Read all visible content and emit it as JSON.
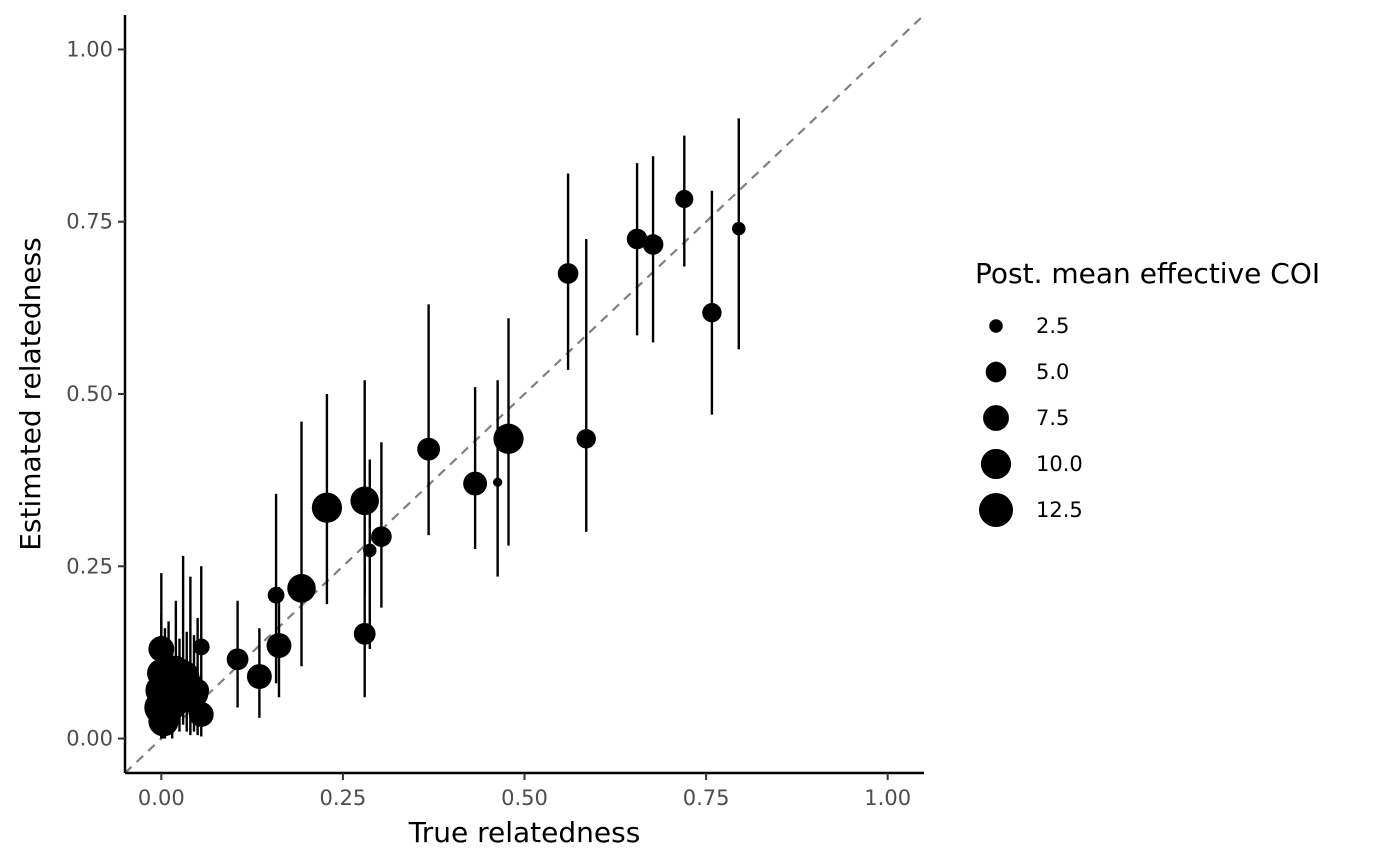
{
  "chart_data": {
    "type": "scatter",
    "xlabel": "True relatedness",
    "ylabel": "Estimated relatedness",
    "xlim": [
      -0.05,
      1.05
    ],
    "ylim": [
      -0.05,
      1.05
    ],
    "x_ticks": [
      "0.00",
      "0.25",
      "0.50",
      "0.75",
      "1.00"
    ],
    "y_ticks": [
      "0.00",
      "0.25",
      "0.50",
      "0.75",
      "1.00"
    ],
    "x_tick_values": [
      0,
      0.25,
      0.5,
      0.75,
      1
    ],
    "y_tick_values": [
      0,
      0.25,
      0.5,
      0.75,
      1
    ],
    "grid": false,
    "reference_line": {
      "type": "identity",
      "style": "dashed",
      "color": "#808080"
    },
    "legend": {
      "title": "Post. mean effective COI",
      "position": "right",
      "entries": [
        {
          "label": "2.5",
          "value": 2.5
        },
        {
          "label": "5.0",
          "value": 5.0
        },
        {
          "label": "7.5",
          "value": 7.5
        },
        {
          "label": "10.0",
          "value": 10.0
        },
        {
          "label": "12.5",
          "value": 12.5
        }
      ]
    },
    "point_color": "#000000",
    "points": [
      {
        "x": 0.0,
        "y": 0.13,
        "lo": 0.02,
        "hi": 0.24,
        "coi": 7.5
      },
      {
        "x": 0.0,
        "y": 0.095,
        "lo": 0.01,
        "hi": 0.18,
        "coi": 9.0
      },
      {
        "x": 0.0,
        "y": 0.07,
        "lo": 0.0,
        "hi": 0.15,
        "coi": 11.0
      },
      {
        "x": 0.0,
        "y": 0.045,
        "lo": 0.0,
        "hi": 0.12,
        "coi": 12.5
      },
      {
        "x": 0.003,
        "y": 0.025,
        "lo": 0.0,
        "hi": 0.09,
        "coi": 10.0
      },
      {
        "x": 0.005,
        "y": 0.06,
        "lo": 0.0,
        "hi": 0.16,
        "coi": 12.0
      },
      {
        "x": 0.01,
        "y": 0.08,
        "lo": 0.01,
        "hi": 0.17,
        "coi": 11.0
      },
      {
        "x": 0.015,
        "y": 0.05,
        "lo": 0.0,
        "hi": 0.13,
        "coi": 10.5
      },
      {
        "x": 0.02,
        "y": 0.1,
        "lo": 0.02,
        "hi": 0.2,
        "coi": 8.5
      },
      {
        "x": 0.025,
        "y": 0.065,
        "lo": 0.01,
        "hi": 0.145,
        "coi": 12.5
      },
      {
        "x": 0.03,
        "y": 0.09,
        "lo": 0.02,
        "hi": 0.265,
        "coi": 11.5
      },
      {
        "x": 0.035,
        "y": 0.075,
        "lo": 0.01,
        "hi": 0.155,
        "coi": 12.0
      },
      {
        "x": 0.04,
        "y": 0.06,
        "lo": 0.005,
        "hi": 0.235,
        "coi": 10.0
      },
      {
        "x": 0.045,
        "y": 0.065,
        "lo": 0.01,
        "hi": 0.15,
        "coi": 9.0
      },
      {
        "x": 0.05,
        "y": 0.07,
        "lo": 0.005,
        "hi": 0.175,
        "coi": 6.0
      },
      {
        "x": 0.055,
        "y": 0.133,
        "lo": 0.03,
        "hi": 0.25,
        "coi": 3.5
      },
      {
        "x": 0.055,
        "y": 0.035,
        "lo": 0.003,
        "hi": 0.095,
        "coi": 7.0
      },
      {
        "x": 0.105,
        "y": 0.115,
        "lo": 0.045,
        "hi": 0.2,
        "coi": 5.5
      },
      {
        "x": 0.135,
        "y": 0.09,
        "lo": 0.03,
        "hi": 0.16,
        "coi": 7.0
      },
      {
        "x": 0.158,
        "y": 0.208,
        "lo": 0.08,
        "hi": 0.355,
        "coi": 3.5
      },
      {
        "x": 0.162,
        "y": 0.135,
        "lo": 0.06,
        "hi": 0.22,
        "coi": 7.0
      },
      {
        "x": 0.193,
        "y": 0.218,
        "lo": 0.105,
        "hi": 0.46,
        "coi": 9.0
      },
      {
        "x": 0.228,
        "y": 0.335,
        "lo": 0.195,
        "hi": 0.5,
        "coi": 10.0
      },
      {
        "x": 0.28,
        "y": 0.345,
        "lo": 0.21,
        "hi": 0.52,
        "coi": 9.0
      },
      {
        "x": 0.28,
        "y": 0.152,
        "lo": 0.06,
        "hi": 0.255,
        "coi": 5.5
      },
      {
        "x": 0.287,
        "y": 0.273,
        "lo": 0.13,
        "hi": 0.405,
        "coi": 2.5
      },
      {
        "x": 0.303,
        "y": 0.293,
        "lo": 0.19,
        "hi": 0.43,
        "coi": 5.0
      },
      {
        "x": 0.368,
        "y": 0.42,
        "lo": 0.295,
        "hi": 0.63,
        "coi": 6.0
      },
      {
        "x": 0.432,
        "y": 0.37,
        "lo": 0.275,
        "hi": 0.51,
        "coi": 6.5
      },
      {
        "x": 0.463,
        "y": 0.372,
        "lo": 0.235,
        "hi": 0.52,
        "coi": 1.5
      },
      {
        "x": 0.478,
        "y": 0.435,
        "lo": 0.28,
        "hi": 0.61,
        "coi": 10.0
      },
      {
        "x": 0.56,
        "y": 0.675,
        "lo": 0.535,
        "hi": 0.82,
        "coi": 5.0
      },
      {
        "x": 0.585,
        "y": 0.435,
        "lo": 0.3,
        "hi": 0.725,
        "coi": 4.5
      },
      {
        "x": 0.655,
        "y": 0.725,
        "lo": 0.585,
        "hi": 0.835,
        "coi": 5.0
      },
      {
        "x": 0.677,
        "y": 0.717,
        "lo": 0.575,
        "hi": 0.845,
        "coi": 5.0
      },
      {
        "x": 0.72,
        "y": 0.783,
        "lo": 0.685,
        "hi": 0.875,
        "coi": 4.0
      },
      {
        "x": 0.758,
        "y": 0.618,
        "lo": 0.47,
        "hi": 0.795,
        "coi": 4.5
      },
      {
        "x": 0.795,
        "y": 0.74,
        "lo": 0.565,
        "hi": 0.9,
        "coi": 2.5
      }
    ]
  }
}
